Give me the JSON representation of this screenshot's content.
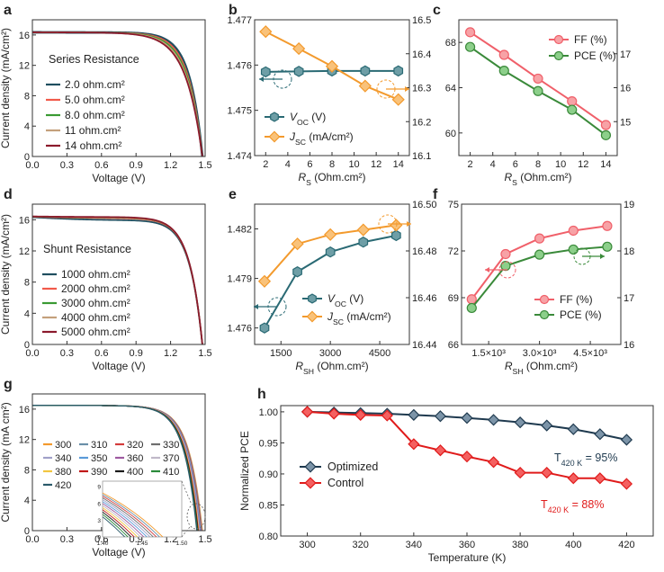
{
  "chart_data": [
    {
      "id": "a",
      "type": "line",
      "panel_label": "a",
      "xlabel": "Voltage (V)",
      "ylabel": "Current density (mA/cm²)",
      "xlim": [
        0,
        1.5
      ],
      "ylim": [
        0,
        18
      ],
      "xticks": [
        0.0,
        0.3,
        0.6,
        0.9,
        1.2,
        1.5
      ],
      "xtick_labels": [
        "0.0",
        "0.3",
        "0.6",
        "0.9",
        "1.2",
        "1.5"
      ],
      "yticks": [
        0,
        4,
        8,
        12,
        16
      ],
      "ytick_labels": [
        "0",
        "4",
        "8",
        "12",
        "16"
      ],
      "annotation": "Series Resistance",
      "legend_position": "center",
      "model": {
        "jsc": 16.35,
        "voc": 1.476,
        "k": 0.42
      },
      "series": [
        {
          "name": "2.0 ohm.cm²",
          "color": "#1f4e5f",
          "rs": 0.02,
          "width": 2.8
        },
        {
          "name": "5.0 ohm.cm²",
          "color": "#f15a4a",
          "rs": 0.05,
          "width": 1.6
        },
        {
          "name": "8.0 ohm.cm²",
          "color": "#3a9a33",
          "rs": 0.08,
          "width": 1.6
        },
        {
          "name": "11 ohm.cm²",
          "color": "#c4a07c",
          "rs": 0.11,
          "width": 1.6
        },
        {
          "name": "14 ohm.cm²",
          "color": "#8b1a2c",
          "rs": 0.14,
          "width": 1.8
        }
      ]
    },
    {
      "id": "b",
      "type": "line",
      "panel_label": "b",
      "xlabel": "RS (Ohm.cm²)",
      "x": [
        2,
        5,
        8,
        11,
        14
      ],
      "xlim": [
        1,
        15
      ],
      "xticks": [
        2,
        4,
        6,
        8,
        10,
        12,
        14
      ],
      "xtick_labels": [
        "2",
        "4",
        "6",
        "8",
        "10",
        "12",
        "14"
      ],
      "ylim_left": [
        1.474,
        1.477
      ],
      "yticks_left": [
        1.474,
        1.475,
        1.476,
        1.477
      ],
      "ytick_labels_left": [
        "1.474",
        "1.475",
        "1.476",
        "1.477"
      ],
      "ylim_right": [
        16.1,
        16.5
      ],
      "yticks_right": [
        16.1,
        16.2,
        16.3,
        16.4,
        16.5
      ],
      "ytick_labels_right": [
        "16.1",
        "16.2",
        "16.3",
        "16.4",
        "16.5"
      ],
      "legend_position": "bottom-left",
      "series": [
        {
          "name": "VOC (V)",
          "axis": "left",
          "color": "#2a6a74",
          "marker": "hexagon",
          "values": [
            1.47585,
            1.47586,
            1.47587,
            1.47587,
            1.47587
          ]
        },
        {
          "name": "JSC (mA/cm²)",
          "axis": "right",
          "color": "#f39a2d",
          "marker": "diamond",
          "values": [
            16.465,
            16.415,
            16.363,
            16.305,
            16.265
          ]
        }
      ]
    },
    {
      "id": "c",
      "type": "line",
      "panel_label": "c",
      "xlabel": "RS (Ohm.cm²)",
      "x": [
        2,
        5,
        8,
        11,
        14
      ],
      "xlim": [
        1,
        15
      ],
      "xticks": [
        2,
        4,
        6,
        8,
        10,
        12,
        14
      ],
      "xtick_labels": [
        "2",
        "4",
        "6",
        "8",
        "10",
        "12",
        "14"
      ],
      "ylim_left": [
        58,
        70
      ],
      "yticks_left": [
        60,
        64,
        68
      ],
      "ytick_labels_left": [
        "60",
        "64",
        "68"
      ],
      "ylim_right": [
        14,
        18
      ],
      "yticks_right": [
        15,
        16,
        17
      ],
      "ytick_labels_right": [
        "15",
        "16",
        "17"
      ],
      "legend_position": "top-right",
      "series": [
        {
          "name": "FF (%)",
          "axis": "left",
          "color": "#f0606a",
          "marker": "circle",
          "values": [
            68.9,
            66.9,
            64.8,
            62.8,
            60.7
          ]
        },
        {
          "name": "PCE (%)",
          "axis": "right",
          "color": "#3a8a3a",
          "marker": "circle",
          "values": [
            17.2,
            16.5,
            15.9,
            15.35,
            14.6
          ]
        }
      ]
    },
    {
      "id": "d",
      "type": "line",
      "panel_label": "d",
      "xlabel": "Voltage (V)",
      "ylabel": "Current density (mA/cm²)",
      "xlim": [
        0,
        1.5
      ],
      "ylim": [
        0,
        18
      ],
      "xticks": [
        0.0,
        0.3,
        0.6,
        0.9,
        1.2,
        1.5
      ],
      "xtick_labels": [
        "0.0",
        "0.3",
        "0.6",
        "0.9",
        "1.2",
        "1.5"
      ],
      "yticks": [
        0,
        4,
        8,
        12,
        16
      ],
      "ytick_labels": [
        "0",
        "4",
        "8",
        "12",
        "16"
      ],
      "annotation": "Shunt Resistance",
      "legend_position": "center",
      "model": {
        "jsc": 16.45,
        "voc": 1.476,
        "k": 0.42
      },
      "series": [
        {
          "name": "1000 ohm.cm²",
          "color": "#1f4e5f",
          "rsh": 1000,
          "width": 1.8
        },
        {
          "name": "2000 ohm.cm²",
          "color": "#f15a4a",
          "rsh": 2000,
          "width": 1.6
        },
        {
          "name": "3000 ohm.cm²",
          "color": "#3a9a33",
          "rsh": 3000,
          "width": 1.6
        },
        {
          "name": "4000 ohm.cm²",
          "color": "#c4a07c",
          "rsh": 4000,
          "width": 1.6
        },
        {
          "name": "5000 ohm.cm²",
          "color": "#8b1a2c",
          "rsh": 5000,
          "width": 1.8
        }
      ]
    },
    {
      "id": "e",
      "type": "line",
      "panel_label": "e",
      "xlabel": "RSH (Ohm.cm²)",
      "x": [
        1000,
        2000,
        3000,
        4000,
        5000
      ],
      "xlim": [
        700,
        5400
      ],
      "xticks": [
        1500,
        3000,
        4500
      ],
      "xtick_labels": [
        "1500",
        "3000",
        "4500"
      ],
      "ylim_left": [
        1.475,
        1.4835
      ],
      "yticks_left": [
        1.476,
        1.479,
        1.482
      ],
      "ytick_labels_left": [
        "1.476",
        "1.479",
        "1.482"
      ],
      "ylim_right": [
        16.44,
        16.5
      ],
      "yticks_right": [
        16.44,
        16.46,
        16.48,
        16.5
      ],
      "ytick_labels_right": [
        "16.44",
        "16.46",
        "16.48",
        "16.50"
      ],
      "legend_position": "bottom-right",
      "series": [
        {
          "name": "VOC (V)",
          "axis": "left",
          "color": "#2a6a74",
          "marker": "hexagon",
          "values": [
            1.476,
            1.4794,
            1.4806,
            1.4812,
            1.4816
          ]
        },
        {
          "name": "JSC (mA/cm²)",
          "axis": "right",
          "color": "#f39a2d",
          "marker": "diamond",
          "values": [
            16.467,
            16.483,
            16.487,
            16.489,
            16.491
          ]
        }
      ]
    },
    {
      "id": "f",
      "type": "line",
      "panel_label": "f",
      "xlabel": "RSH (Ohm.cm²)",
      "x": [
        1000,
        2000,
        3000,
        4000,
        5000
      ],
      "xlim": [
        700,
        5400
      ],
      "xticks": [
        1500,
        3000,
        4500
      ],
      "xtick_labels": [
        "1.5×10³",
        "3.0×10³",
        "4.5×10³"
      ],
      "ylim_left": [
        66,
        75
      ],
      "yticks_left": [
        66,
        69,
        72,
        75
      ],
      "ytick_labels_left": [
        "66",
        "69",
        "72",
        "75"
      ],
      "ylim_right": [
        16,
        19
      ],
      "yticks_right": [
        16,
        17,
        18,
        19
      ],
      "ytick_labels_right": [
        "16",
        "17",
        "18",
        "19"
      ],
      "legend_position": "bottom-right",
      "series": [
        {
          "name": "FF (%)",
          "axis": "left",
          "color": "#f0606a",
          "marker": "circle",
          "values": [
            68.9,
            71.8,
            72.8,
            73.3,
            73.6
          ]
        },
        {
          "name": "PCE (%)",
          "axis": "right",
          "color": "#3a8a3a",
          "marker": "circle",
          "values": [
            16.78,
            17.68,
            17.92,
            18.03,
            18.09
          ]
        }
      ]
    },
    {
      "id": "g",
      "type": "line",
      "panel_label": "g",
      "xlabel": "Voltage (V)",
      "ylabel": "Current density (mA cm²)",
      "xlim": [
        0,
        1.5
      ],
      "ylim": [
        0,
        18
      ],
      "xticks": [
        0.0,
        0.3,
        0.6,
        0.9,
        1.2,
        1.5
      ],
      "xtick_labels": [
        "0.0",
        "0.3",
        "0.6",
        "0.9",
        "1.2",
        "1.5"
      ],
      "yticks": [
        0,
        4,
        8,
        12,
        16
      ],
      "ytick_labels": [
        "0",
        "4",
        "8",
        "12",
        "16"
      ],
      "legend_position": "center",
      "model": {
        "jsc": 16.5,
        "voc": 1.476,
        "k": 0.42
      },
      "inset": {
        "xlim": [
          1.4,
          1.5
        ],
        "ylim": [
          0,
          10
        ],
        "xticks": [
          1.4,
          1.45,
          1.5
        ],
        "xtick_labels": [
          "1.40",
          "1.45",
          "1.50"
        ],
        "yticks": [
          0,
          3,
          6,
          9
        ],
        "ytick_labels": [
          "0",
          "3",
          "6",
          "9"
        ]
      },
      "series": [
        {
          "name": "300",
          "color": "#f39a2d",
          "voc": 1.476
        },
        {
          "name": "310",
          "color": "#6a8fa8",
          "voc": 1.472
        },
        {
          "name": "320",
          "color": "#d43c3c",
          "voc": 1.468
        },
        {
          "name": "330",
          "color": "#6e6e6e",
          "voc": 1.464
        },
        {
          "name": "340",
          "color": "#a0a0c8",
          "voc": 1.46
        },
        {
          "name": "350",
          "color": "#5a9ad8",
          "voc": 1.456
        },
        {
          "name": "360",
          "color": "#9e5aa0",
          "voc": 1.452
        },
        {
          "name": "370",
          "color": "#c0b8c8",
          "voc": 1.448
        },
        {
          "name": "380",
          "color": "#f2c640",
          "voc": 1.444
        },
        {
          "name": "390",
          "color": "#c01818",
          "voc": 1.44
        },
        {
          "name": "400",
          "color": "#1a1a1a",
          "voc": 1.436
        },
        {
          "name": "410",
          "color": "#2a8a3a",
          "voc": 1.432
        },
        {
          "name": "420",
          "color": "#2a5a6a",
          "voc": 1.428
        }
      ]
    },
    {
      "id": "h",
      "type": "line",
      "panel_label": "h",
      "xlabel": "Temperature (K)",
      "ylabel": "Normalized PCE",
      "x": [
        300,
        310,
        320,
        330,
        340,
        350,
        360,
        370,
        380,
        390,
        400,
        410,
        420
      ],
      "xlim": [
        290,
        430
      ],
      "xticks": [
        300,
        320,
        340,
        360,
        380,
        400,
        420
      ],
      "xtick_labels": [
        "300",
        "320",
        "340",
        "360",
        "380",
        "400",
        "420"
      ],
      "ylim": [
        0.8,
        1.01
      ],
      "yticks": [
        0.8,
        0.85,
        0.9,
        0.95,
        1.0
      ],
      "ytick_labels": [
        "0.80",
        "0.85",
        "0.90",
        "0.95",
        "1.00"
      ],
      "legend_position": "center-left",
      "series": [
        {
          "name": "Optimized",
          "color": "#1f3a4f",
          "fill": "#7c94a8",
          "marker": "diamond",
          "values": [
            1.0,
            0.999,
            0.998,
            0.997,
            0.995,
            0.993,
            0.99,
            0.987,
            0.983,
            0.978,
            0.972,
            0.964,
            0.955
          ]
        },
        {
          "name": "Control",
          "color": "#e01b1b",
          "fill": "#f46060",
          "marker": "diamond",
          "values": [
            1.0,
            0.997,
            0.995,
            0.994,
            0.948,
            0.938,
            0.928,
            0.919,
            0.902,
            0.902,
            0.893,
            0.893,
            0.884
          ]
        }
      ],
      "annotations": [
        {
          "text": "T420 K = 95%",
          "base": "T",
          "sub": "420 K",
          "rest": " = 95%",
          "color": "#1f3a4f"
        },
        {
          "text": "T420 K = 88%",
          "base": "T",
          "sub": "420 K",
          "rest": " = 88%",
          "color": "#e01b1b"
        }
      ]
    }
  ]
}
